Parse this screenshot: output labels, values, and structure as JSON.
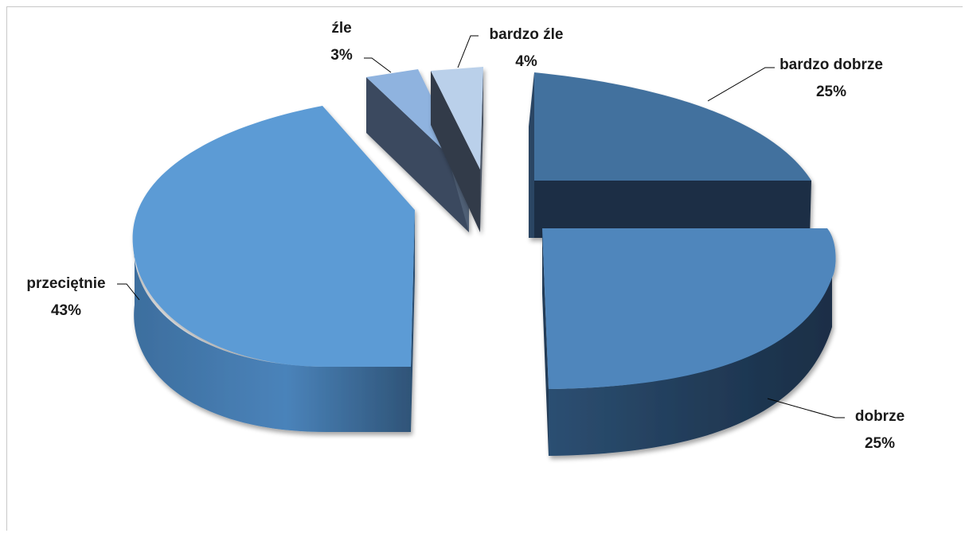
{
  "chart_data": {
    "type": "pie",
    "style": "3d-exploded",
    "title": "",
    "slices": [
      {
        "label": "bardzo dobrze",
        "value": 25,
        "display": "25%",
        "color": "#43719e"
      },
      {
        "label": "dobrze",
        "value": 25,
        "display": "25%",
        "color": "#4f86bc"
      },
      {
        "label": "przeciętnie",
        "value": 43,
        "display": "43%",
        "color": "#5b9bd5"
      },
      {
        "label": "źle",
        "value": 3,
        "display": "3%",
        "color": "#8fb3df"
      },
      {
        "label": "bardzo źle",
        "value": 4,
        "display": "4%",
        "color": "#bad0ea"
      }
    ]
  }
}
